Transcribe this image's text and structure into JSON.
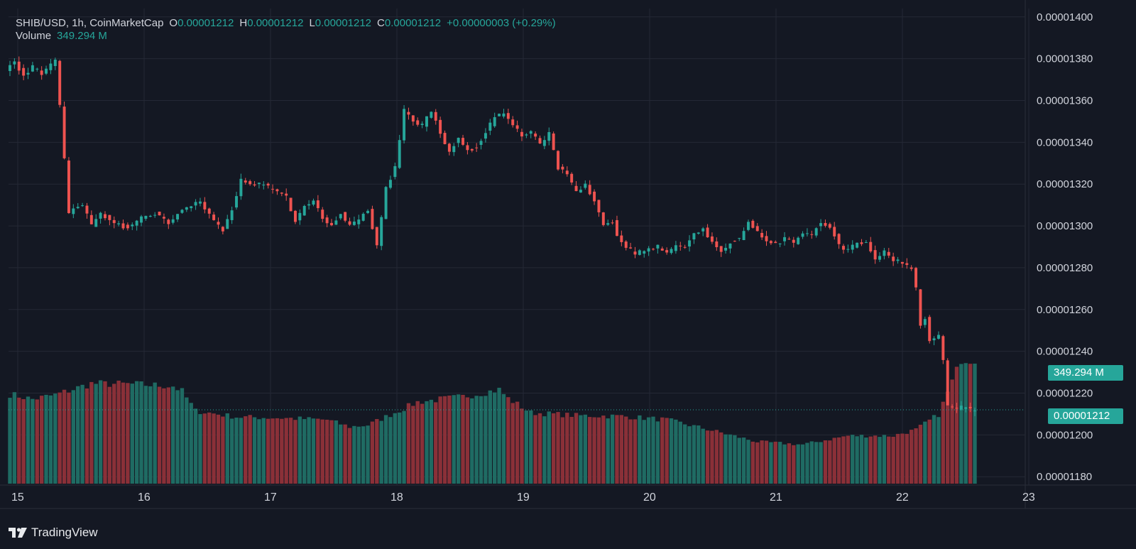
{
  "legend": {
    "symbol": "SHIB/USD, 1h, CoinMarketCap",
    "o_key": "O",
    "o_val": "0.00001212",
    "h_key": "H",
    "h_val": "0.00001212",
    "l_key": "L",
    "l_val": "0.00001212",
    "c_key": "C",
    "c_val": "0.00001212",
    "change": "+0.00000003 (+0.29%)",
    "volume_label": "Volume",
    "volume_val": "349.294 M"
  },
  "tags": {
    "volume": "349.294 M",
    "price": "0.00001212"
  },
  "brand": {
    "name": "TradingView"
  },
  "colors": {
    "up": "#26a69a",
    "down": "#ef5350",
    "up_vol": "#1f6b63",
    "down_vol": "#8a3038",
    "grid": "#242835",
    "text": "#d1d4dc",
    "bg": "#141823"
  },
  "chart_data": {
    "type": "candlestick",
    "title": "SHIB/USD, 1h, CoinMarketCap",
    "x_ticks": [
      "15",
      "16",
      "17",
      "18",
      "19",
      "20",
      "21",
      "22",
      "23"
    ],
    "y_ticks": [
      "0.00001400",
      "0.00001380",
      "0.00001360",
      "0.00001340",
      "0.00001320",
      "0.00001300",
      "0.00001280",
      "0.00001260",
      "0.00001240",
      "0.00001220",
      "0.00001200",
      "0.00001180"
    ],
    "ylim": [
      1.176e-05,
      1.404e-05
    ],
    "grid": true,
    "last_price": 1.212e-05,
    "last_volume_m": 349.294,
    "anchors": [
      [
        0,
        1375
      ],
      [
        2,
        1378
      ],
      [
        4,
        1372
      ],
      [
        6,
        1376
      ],
      [
        8,
        1373
      ],
      [
        10,
        1377
      ],
      [
        11,
        1379
      ],
      [
        12,
        1357
      ],
      [
        13,
        1332
      ],
      [
        14,
        1306
      ],
      [
        15,
        1308
      ],
      [
        17,
        1310
      ],
      [
        19,
        1300
      ],
      [
        21,
        1306
      ],
      [
        24,
        1301
      ],
      [
        27,
        1299
      ],
      [
        30,
        1304
      ],
      [
        33,
        1306
      ],
      [
        36,
        1301
      ],
      [
        38,
        1306
      ],
      [
        40,
        1309
      ],
      [
        43,
        1312
      ],
      [
        46,
        1302
      ],
      [
        48,
        1298
      ],
      [
        50,
        1308
      ],
      [
        52,
        1322
      ],
      [
        54,
        1320
      ],
      [
        57,
        1320
      ],
      [
        59,
        1317
      ],
      [
        62,
        1314
      ],
      [
        64,
        1302
      ],
      [
        66,
        1309
      ],
      [
        68,
        1313
      ],
      [
        70,
        1304
      ],
      [
        72,
        1300
      ],
      [
        74,
        1306
      ],
      [
        76,
        1300
      ],
      [
        78,
        1303
      ],
      [
        80,
        1308
      ],
      [
        82,
        1290
      ],
      [
        84,
        1318
      ],
      [
        86,
        1328
      ],
      [
        88,
        1355
      ],
      [
        90,
        1350
      ],
      [
        92,
        1348
      ],
      [
        94,
        1355
      ],
      [
        96,
        1345
      ],
      [
        98,
        1335
      ],
      [
        100,
        1343
      ],
      [
        102,
        1336
      ],
      [
        104,
        1338
      ],
      [
        106,
        1345
      ],
      [
        108,
        1352
      ],
      [
        110,
        1354
      ],
      [
        112,
        1348
      ],
      [
        114,
        1343
      ],
      [
        116,
        1345
      ],
      [
        118,
        1339
      ],
      [
        120,
        1344
      ],
      [
        122,
        1328
      ],
      [
        124,
        1324
      ],
      [
        126,
        1316
      ],
      [
        128,
        1320
      ],
      [
        130,
        1312
      ],
      [
        132,
        1300
      ],
      [
        134,
        1302
      ],
      [
        135,
        1295
      ],
      [
        137,
        1290
      ],
      [
        139,
        1287
      ],
      [
        141,
        1288
      ],
      [
        144,
        1290
      ],
      [
        146,
        1287
      ],
      [
        148,
        1290
      ],
      [
        150,
        1290
      ],
      [
        152,
        1296
      ],
      [
        154,
        1299
      ],
      [
        156,
        1292
      ],
      [
        158,
        1288
      ],
      [
        160,
        1292
      ],
      [
        162,
        1294
      ],
      [
        164,
        1302
      ],
      [
        166,
        1297
      ],
      [
        168,
        1292
      ],
      [
        170,
        1291
      ],
      [
        172,
        1294
      ],
      [
        174,
        1292
      ],
      [
        176,
        1296
      ],
      [
        178,
        1296
      ],
      [
        180,
        1302
      ],
      [
        182,
        1300
      ],
      [
        184,
        1291
      ],
      [
        186,
        1288
      ],
      [
        188,
        1292
      ],
      [
        190,
        1292
      ],
      [
        192,
        1284
      ],
      [
        194,
        1288
      ],
      [
        196,
        1284
      ],
      [
        198,
        1282
      ],
      [
        200,
        1280
      ],
      [
        201,
        1270
      ],
      [
        202,
        1252
      ],
      [
        203,
        1256
      ],
      [
        204,
        1245
      ],
      [
        206,
        1248
      ],
      [
        207,
        1236
      ],
      [
        208,
        1214
      ],
      [
        210,
        1212
      ],
      [
        212,
        1214
      ],
      [
        213,
        1212
      ]
    ],
    "volume_anchors": [
      [
        0,
        252
      ],
      [
        5,
        238
      ],
      [
        10,
        250
      ],
      [
        18,
        282
      ],
      [
        27,
        280
      ],
      [
        36,
        275
      ],
      [
        38,
        260
      ],
      [
        41,
        205
      ],
      [
        50,
        188
      ],
      [
        60,
        185
      ],
      [
        70,
        180
      ],
      [
        75,
        160
      ],
      [
        79,
        165
      ],
      [
        85,
        200
      ],
      [
        90,
        230
      ],
      [
        100,
        245
      ],
      [
        108,
        265
      ],
      [
        110,
        240
      ],
      [
        115,
        200
      ],
      [
        125,
        192
      ],
      [
        135,
        190
      ],
      [
        145,
        180
      ],
      [
        155,
        150
      ],
      [
        165,
        118
      ],
      [
        175,
        110
      ],
      [
        185,
        135
      ],
      [
        195,
        135
      ],
      [
        200,
        152
      ],
      [
        205,
        195
      ],
      [
        210,
        350
      ],
      [
        213,
        349
      ]
    ]
  }
}
